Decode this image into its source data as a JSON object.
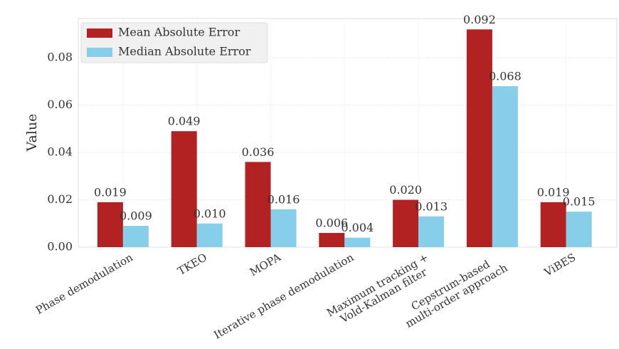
{
  "chart_data": {
    "type": "bar",
    "categories": [
      "Phase demodulation",
      "TKEO",
      "MOPA",
      "Iterative phase demodulation",
      "Maximum tracking +\nVold-Kalman filter",
      "Cepstrum-based\nmulti-order approach",
      "ViBES"
    ],
    "series": [
      {
        "name": "Mean Absolute Error",
        "color": "#b22222",
        "values": [
          0.019,
          0.049,
          0.036,
          0.006,
          0.02,
          0.092,
          0.019
        ],
        "value_labels": [
          "0.019",
          "0.049",
          "0.036",
          "0.006",
          "0.020",
          "0.092",
          "0.019"
        ]
      },
      {
        "name": "Median Absolute Error",
        "color": "#87ceeb",
        "values": [
          0.009,
          0.01,
          0.016,
          0.004,
          0.013,
          0.068,
          0.015
        ],
        "value_labels": [
          "0.009",
          "0.010",
          "0.016",
          "0.004",
          "0.013",
          "0.068",
          "0.015"
        ]
      }
    ],
    "ylabel": "Value",
    "ylim": [
      0,
      0.0966
    ],
    "yticks": [
      {
        "value": 0,
        "label": "0.00"
      },
      {
        "value": 0.02,
        "label": "0.02"
      },
      {
        "value": 0.04,
        "label": "0.04"
      },
      {
        "value": 0.06,
        "label": "0.06"
      },
      {
        "value": 0.08,
        "label": "0.08"
      }
    ],
    "grid": true,
    "legend": "upper left"
  }
}
